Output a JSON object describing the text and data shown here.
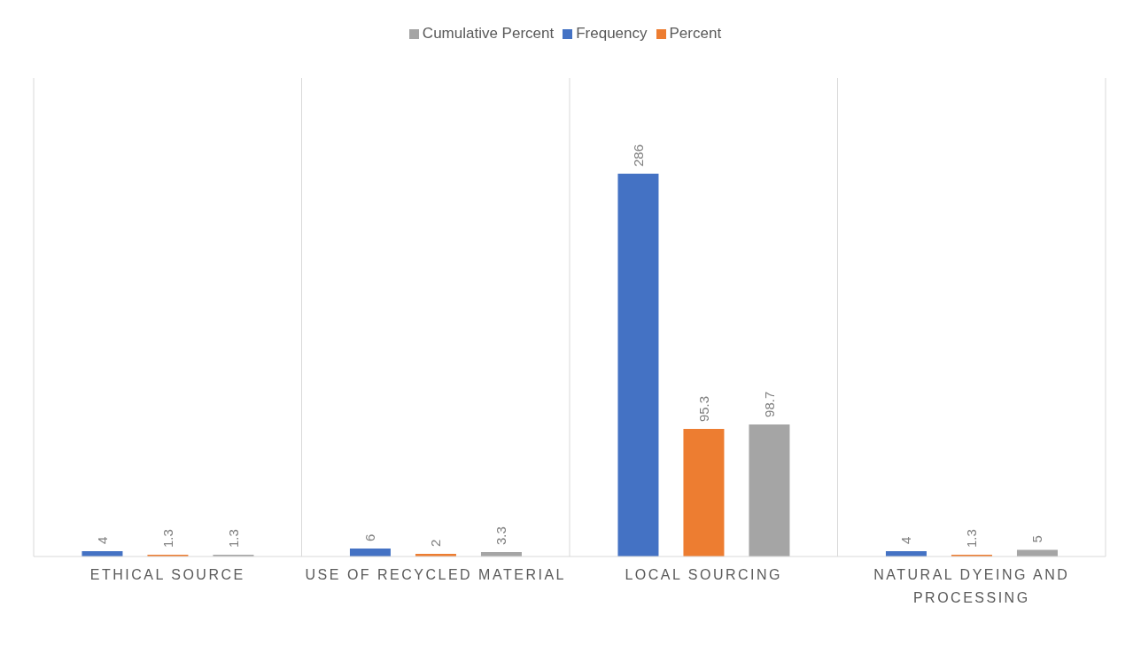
{
  "chart_data": {
    "type": "bar",
    "categories": [
      "ETHICAL SOURCE",
      "USE OF RECYCLED MATERIAL",
      "LOCAL SOURCING",
      "NATURAL DYEING AND PROCESSING"
    ],
    "series": [
      {
        "name": "Frequency",
        "color": "#4472c4",
        "values": [
          4,
          6,
          286,
          4
        ]
      },
      {
        "name": "Percent",
        "color": "#ed7d31",
        "values": [
          1.3,
          2,
          95.3,
          1.3
        ]
      },
      {
        "name": "Cumulative Percent",
        "color": "#a5a5a5",
        "values": [
          1.3,
          3.3,
          98.7,
          5
        ]
      }
    ],
    "data_labels": true,
    "grid": "x",
    "legend": "top"
  }
}
